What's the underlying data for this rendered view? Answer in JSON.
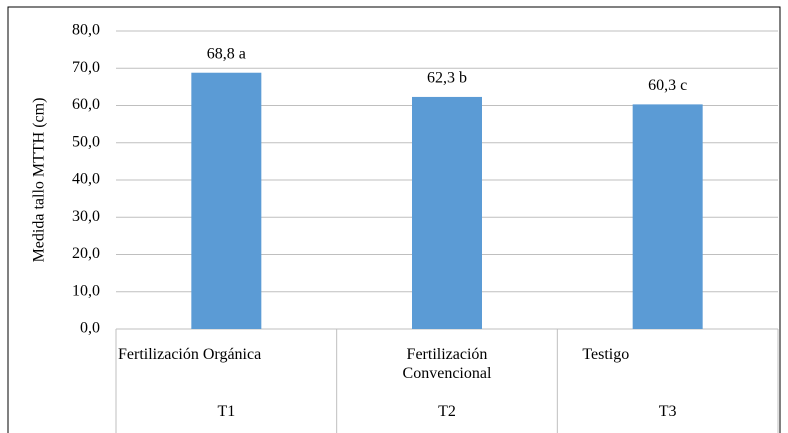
{
  "chart_data": {
    "type": "bar",
    "y_label": "Medida tallo MTTH (cm)",
    "categories": [
      "Fertilización Orgánica",
      "Fertilización Convencional",
      "Testigo"
    ],
    "category_groups": [
      "T1",
      "T2",
      "T3"
    ],
    "values": [
      68.8,
      62.3,
      60.3
    ],
    "value_labels": [
      "68,8 a",
      "62,3 b",
      "60,3 c"
    ],
    "color": "#5b9bd5",
    "ylim": [
      0,
      80
    ],
    "yticks": [
      {
        "value": 0,
        "label": "0,0"
      },
      {
        "value": 10,
        "label": "10,0"
      },
      {
        "value": 20,
        "label": "20,0"
      },
      {
        "value": 30,
        "label": "30,0"
      },
      {
        "value": 40,
        "label": "40,0"
      },
      {
        "value": 50,
        "label": "50,0"
      },
      {
        "value": 60,
        "label": "60,0"
      },
      {
        "value": 70,
        "label": "70,0"
      },
      {
        "value": 80,
        "label": "80,0"
      }
    ],
    "grid": true
  }
}
